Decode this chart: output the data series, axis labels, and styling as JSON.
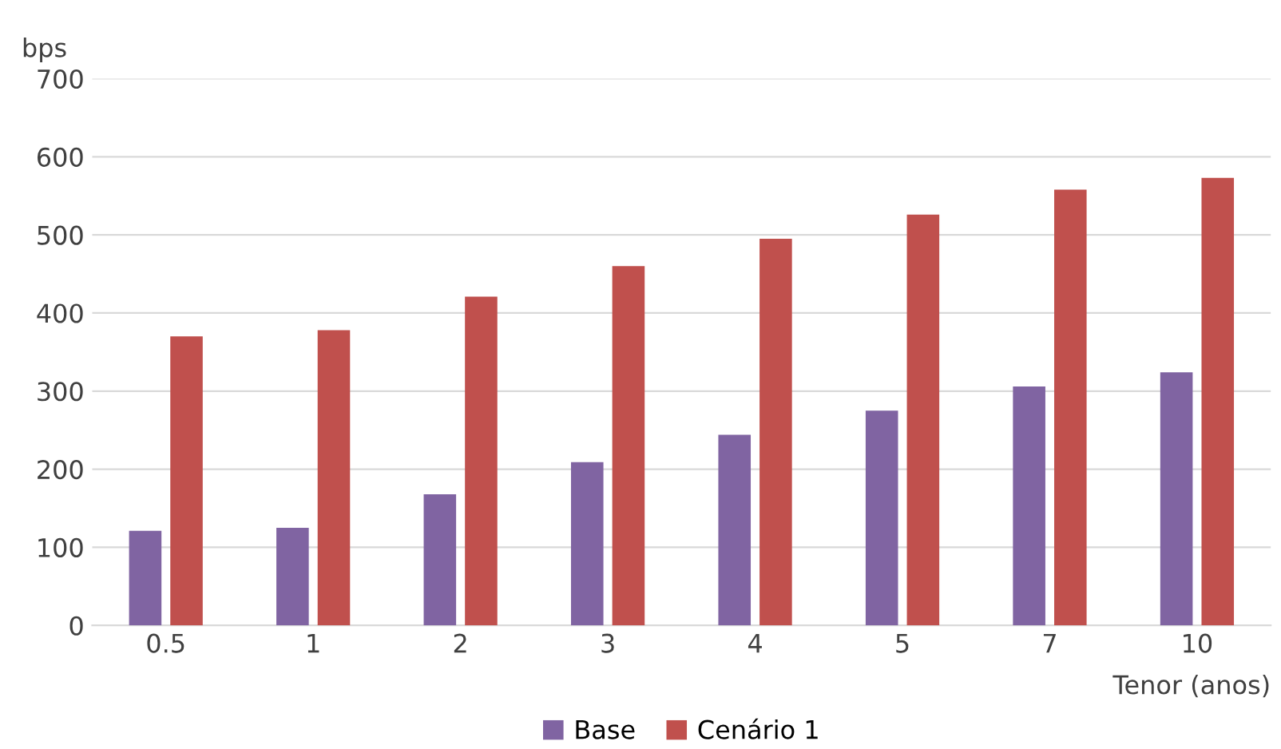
{
  "chart_data": {
    "type": "bar",
    "ylabel": "bps",
    "xlabel": "Tenor (anos)",
    "categories": [
      "0.5",
      "1",
      "2",
      "3",
      "4",
      "5",
      "7",
      "10"
    ],
    "series": [
      {
        "name": "Base",
        "color": "#8064a2",
        "values": [
          121,
          125,
          168,
          209,
          244,
          275,
          306,
          324
        ]
      },
      {
        "name": "Cenário 1",
        "color": "#c0504d",
        "values": [
          370,
          378,
          421,
          460,
          495,
          526,
          558,
          573
        ]
      }
    ],
    "ylim": [
      0,
      700
    ],
    "yticks": [
      0,
      100,
      200,
      300,
      400,
      500,
      600,
      700
    ],
    "grid": "y",
    "legend": "bottom"
  }
}
